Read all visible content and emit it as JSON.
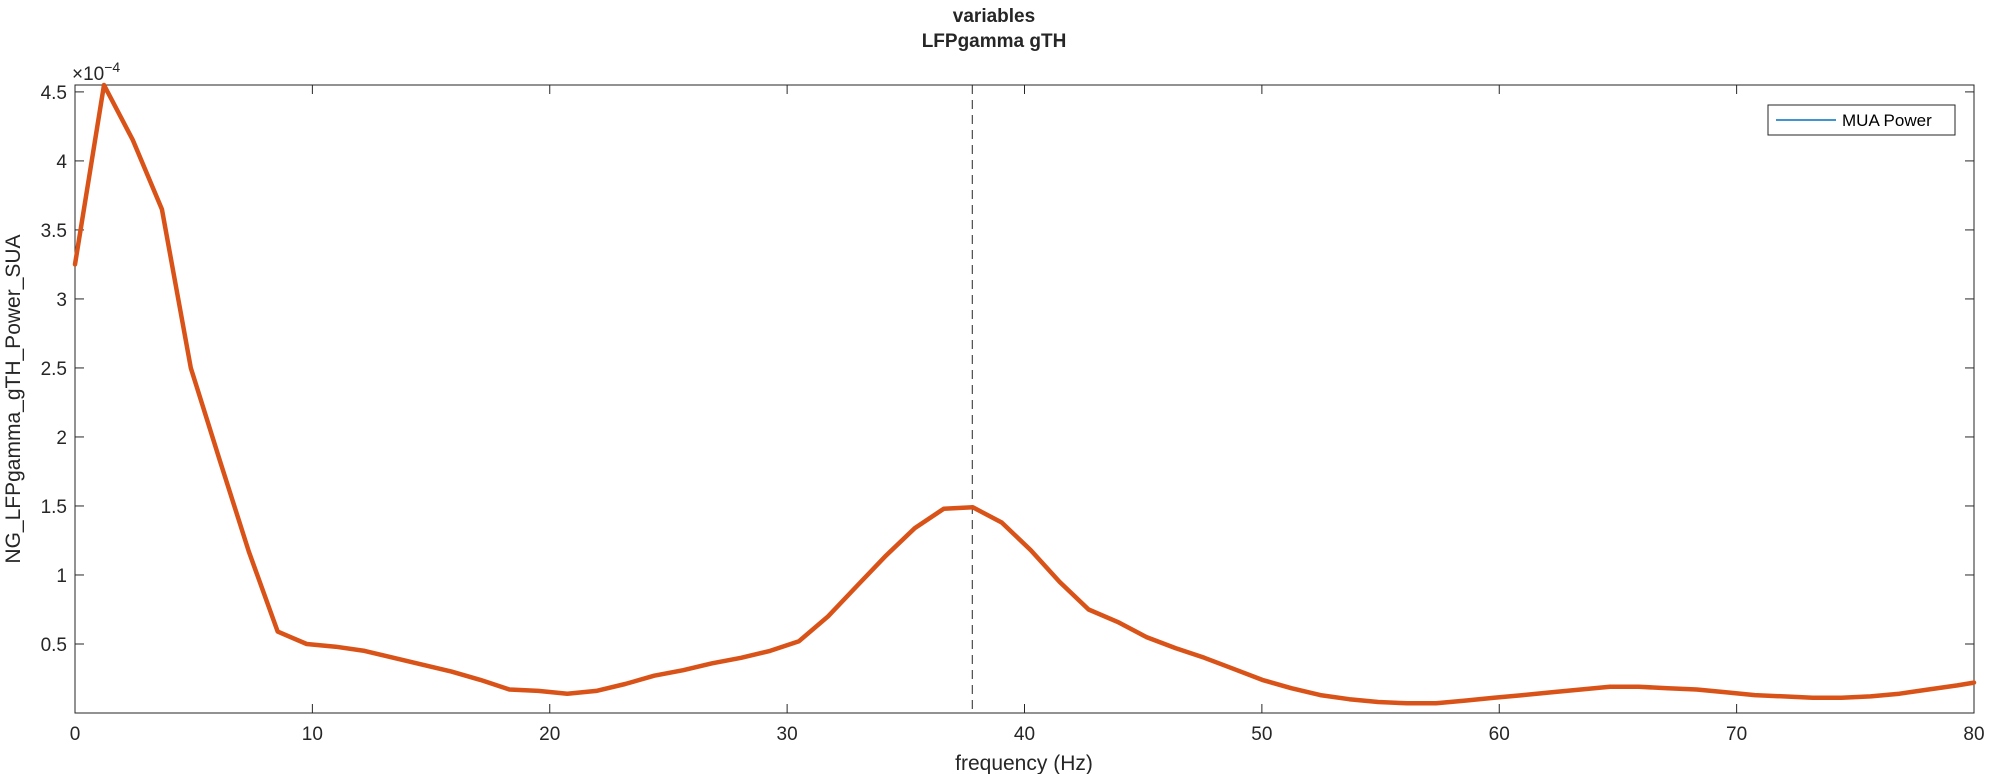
{
  "chart_data": {
    "type": "line",
    "title": "variables",
    "subtitle": "LFPgamma gTH",
    "xlabel": "frequency (Hz)",
    "ylabel": "NG_LFPgamma_gTH_Power_SUA",
    "y_exponent_label": "×10",
    "y_exponent_power": "−4",
    "xlim": [
      0,
      80
    ],
    "ylim": [
      0,
      0.000455
    ],
    "x_ticks": [
      0,
      10,
      20,
      30,
      40,
      50,
      60,
      70,
      80
    ],
    "x_tick_labels": [
      "0",
      "10",
      "20",
      "30",
      "40",
      "50",
      "60",
      "70",
      "80"
    ],
    "y_ticks": [
      5e-05,
      0.0001,
      0.00015,
      0.0002,
      0.00025,
      0.0003,
      0.00035,
      0.0004,
      0.00045
    ],
    "y_tick_labels": [
      "0.5",
      "1",
      "1.5",
      "2",
      "2.5",
      "3",
      "3.5",
      "4",
      "4.5"
    ],
    "grid": false,
    "legend_position": "top-right",
    "legend": [
      "MUA Power"
    ],
    "vertical_marker_x": 37.8,
    "series": [
      {
        "name": "MUA Power",
        "legend_color": "#0072bd",
        "color": "#d95319",
        "x": [
          0,
          1.22,
          2.44,
          3.66,
          4.88,
          6.1,
          7.32,
          8.54,
          9.76,
          10.98,
          12.2,
          13.42,
          14.64,
          15.86,
          17.08,
          18.3,
          19.52,
          20.74,
          21.96,
          23.18,
          24.4,
          25.62,
          26.84,
          28.06,
          29.28,
          30.5,
          31.72,
          32.94,
          34.16,
          35.38,
          36.6,
          37.82,
          39.04,
          40.26,
          41.48,
          42.7,
          43.92,
          45.14,
          46.36,
          47.58,
          48.8,
          50.02,
          51.24,
          52.46,
          53.68,
          54.9,
          56.12,
          57.34,
          58.56,
          59.78,
          61,
          62.22,
          63.44,
          64.66,
          65.88,
          67.1,
          68.32,
          69.54,
          70.76,
          71.98,
          73.2,
          74.42,
          75.64,
          76.86,
          78.08,
          79.3,
          80
        ],
        "values": [
          0.000325,
          0.000455,
          0.000415,
          0.000365,
          0.00025,
          0.000183,
          0.000117,
          5.9e-05,
          5e-05,
          4.8e-05,
          4.5e-05,
          4e-05,
          3.5e-05,
          3e-05,
          2.4e-05,
          1.7e-05,
          1.6e-05,
          1.4e-05,
          1.6e-05,
          2.1e-05,
          2.7e-05,
          3.1e-05,
          3.6e-05,
          4e-05,
          4.5e-05,
          5.2e-05,
          7e-05,
          9.2e-05,
          0.000114,
          0.000134,
          0.000148,
          0.000149,
          0.000138,
          0.000118,
          9.5e-05,
          7.5e-05,
          6.6e-05,
          5.5e-05,
          4.7e-05,
          4e-05,
          3.2e-05,
          2.4e-05,
          1.8e-05,
          1.3e-05,
          1e-05,
          8e-06,
          7e-06,
          7e-06,
          9e-06,
          1.1e-05,
          1.3e-05,
          1.5e-05,
          1.7e-05,
          1.9e-05,
          1.9e-05,
          1.8e-05,
          1.7e-05,
          1.5e-05,
          1.3e-05,
          1.2e-05,
          1.1e-05,
          1.1e-05,
          1.2e-05,
          1.4e-05,
          1.7e-05,
          2e-05,
          2.2e-05
        ]
      }
    ]
  }
}
